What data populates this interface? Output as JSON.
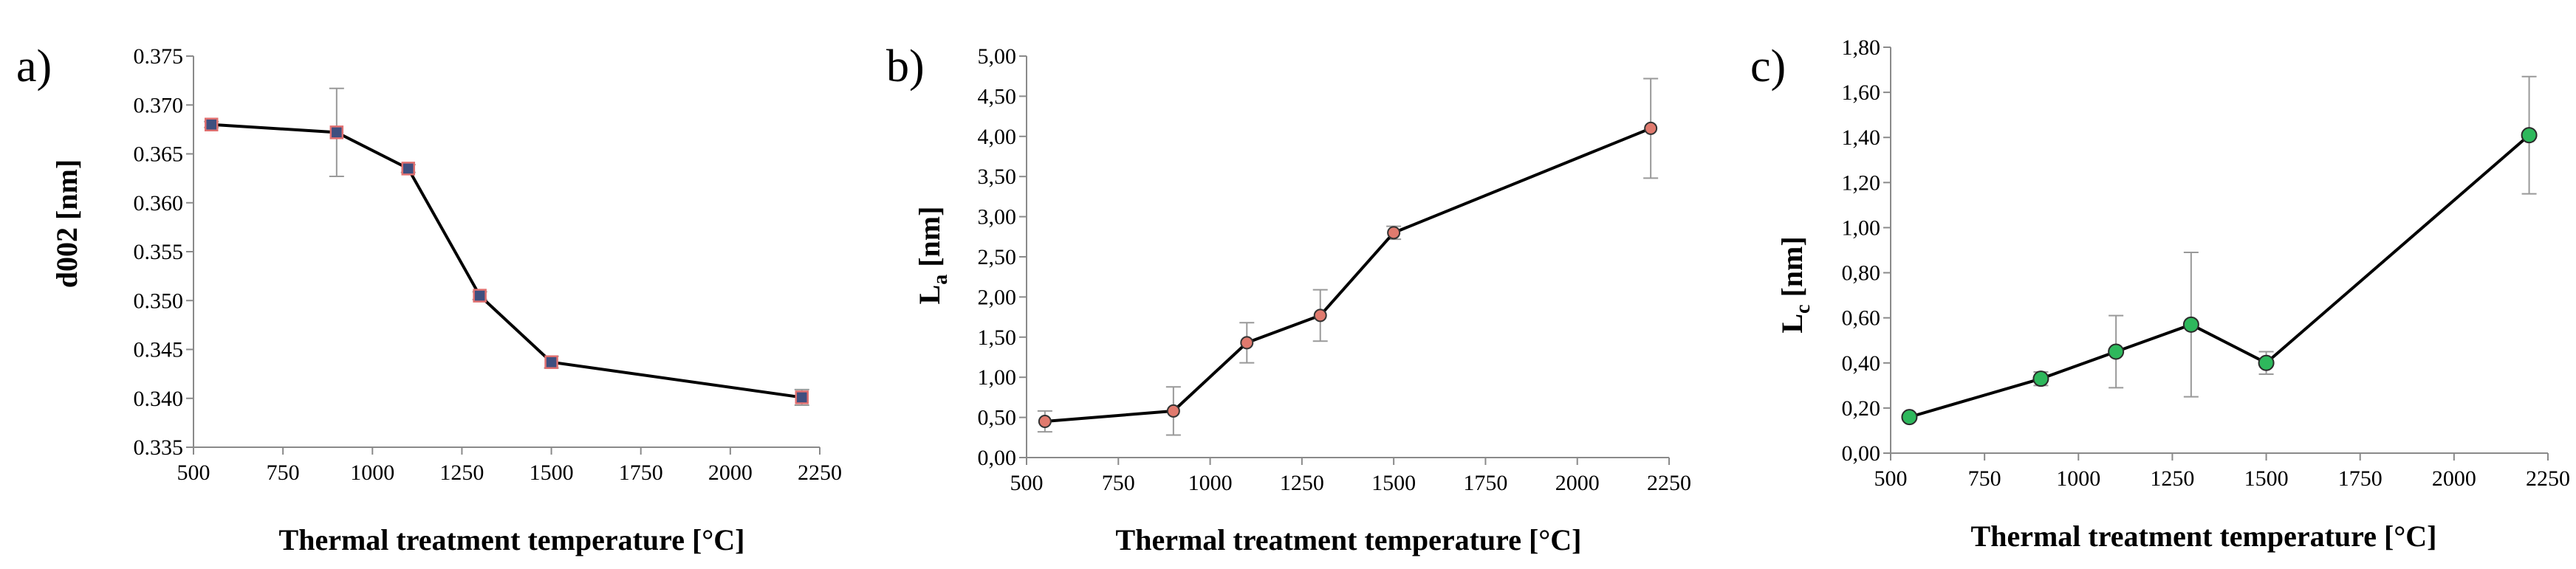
{
  "chart_data": [
    {
      "type": "line",
      "panel_label": "a)",
      "title": "",
      "xlabel": "Thermal treatment temperature [°C]",
      "ylabel": "d002 [nm]",
      "xlim": [
        500,
        2250
      ],
      "ylim": [
        0.335,
        0.375
      ],
      "x_ticks": [
        "500",
        "750",
        "1000",
        "1250",
        "1500",
        "1750",
        "2000",
        "2250"
      ],
      "y_ticks": [
        "0.335",
        "0.340",
        "0.345",
        "0.350",
        "0.355",
        "0.360",
        "0.365",
        "0.370",
        "0.375"
      ],
      "grid": false,
      "legend": "none",
      "marker": {
        "fill": "#3f4f7f",
        "edge": "#e07070",
        "style": "square"
      },
      "line_color": "#000000",
      "errorbar_color": "#999999",
      "series": [
        {
          "name": "d002",
          "x": [
            550,
            900,
            1100,
            1300,
            1500,
            2200
          ],
          "values": [
            0.368,
            0.3672,
            0.3635,
            0.3505,
            0.3437,
            0.3401
          ],
          "errors": [
            0.0003,
            0.0045,
            0.0004,
            0.0004,
            0.0006,
            0.0008
          ]
        }
      ]
    },
    {
      "type": "line",
      "panel_label": "b)",
      "title": "",
      "xlabel": "Thermal treatment temperature [°C]",
      "ylabel_main": "L",
      "ylabel_sub": "a",
      "ylabel_unit": " [nm]",
      "xlim": [
        500,
        2250
      ],
      "ylim": [
        0,
        5
      ],
      "x_ticks": [
        "500",
        "750",
        "1000",
        "1250",
        "1500",
        "1750",
        "2000",
        "2250"
      ],
      "y_ticks": [
        "0,00",
        "0,50",
        "1,00",
        "1,50",
        "2,00",
        "2,50",
        "3,00",
        "3,50",
        "4,00",
        "4,50",
        "5,00"
      ],
      "grid": false,
      "legend": "none",
      "marker": {
        "fill": "#e07a6e",
        "edge": "#333333",
        "style": "circle"
      },
      "line_color": "#000000",
      "errorbar_color": "#999999",
      "series": [
        {
          "name": "La",
          "x": [
            550,
            900,
            1100,
            1300,
            1500,
            2200
          ],
          "values": [
            0.45,
            0.58,
            1.43,
            1.77,
            2.8,
            4.1
          ],
          "errors": [
            0.13,
            0.3,
            0.25,
            0.32,
            0.08,
            0.62
          ]
        }
      ]
    },
    {
      "type": "line",
      "panel_label": "c)",
      "title": "",
      "xlabel": "Thermal treatment temperature [°C]",
      "ylabel_main": "L",
      "ylabel_sub": "c",
      "ylabel_unit": " [nm]",
      "xlim": [
        500,
        2250
      ],
      "ylim": [
        0,
        1.8
      ],
      "x_ticks": [
        "500",
        "750",
        "1000",
        "1250",
        "1500",
        "1750",
        "2000",
        "2250"
      ],
      "y_ticks": [
        "0,00",
        "0,20",
        "0,40",
        "0,60",
        "0,80",
        "1,00",
        "1,20",
        "1,40",
        "1,60",
        "1,80"
      ],
      "grid": false,
      "legend": "none",
      "marker": {
        "fill": "#2eb85c",
        "edge": "#2a2a2a",
        "style": "circle"
      },
      "line_color": "#000000",
      "errorbar_color": "#999999",
      "series": [
        {
          "name": "Lc",
          "x": [
            550,
            900,
            1100,
            1300,
            1500,
            2200
          ],
          "values": [
            0.16,
            0.33,
            0.45,
            0.57,
            0.4,
            1.41
          ],
          "errors": [
            0.01,
            0.03,
            0.16,
            0.32,
            0.05,
            0.26
          ]
        }
      ]
    }
  ]
}
